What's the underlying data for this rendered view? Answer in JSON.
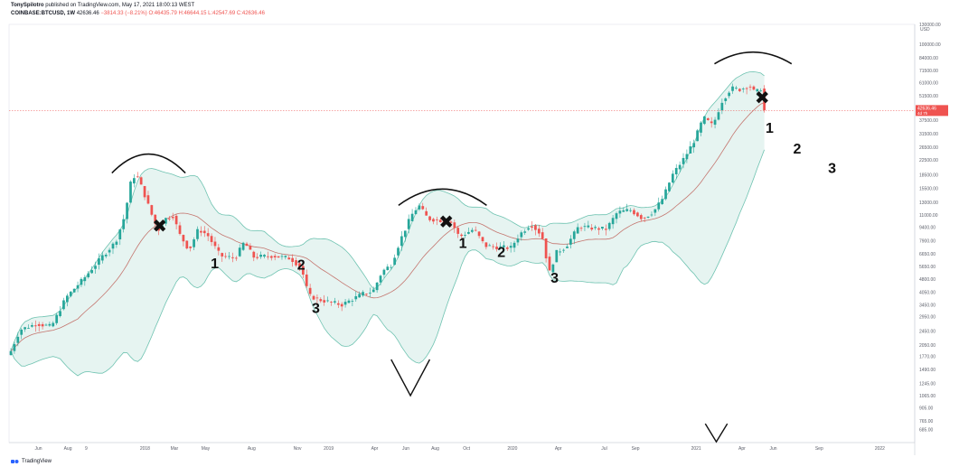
{
  "header": {
    "publisher": "TonySpilotro",
    "published_on": "published on TradingView.com, May 17, 2021 18:00:13 WEST",
    "symbol": "COINBASE:BTCUSD, 1W",
    "last": "42636.46",
    "change": "−3814.33 (−8.21%)",
    "open": "O:46435.79",
    "high": "H:46644.15",
    "low": "L:42547.69",
    "close": "C:42636.46"
  },
  "brand": {
    "name": "TradingView"
  },
  "colors": {
    "up": "#26a69a",
    "down": "#ef5350",
    "band_fill": "#e6f4f1",
    "band_line": "#6fc3b1",
    "basis": "#c4766f",
    "annotation": "#111111",
    "price_line": "#ef5350"
  },
  "chart_data": {
    "type": "candlestick",
    "title": "",
    "xlabel": "",
    "ylabel": "",
    "scale": "log",
    "ylim": [
      580,
      130000
    ],
    "currency_label": "USD",
    "y_ticks": [
      "130000.00",
      "100000.00",
      "84000.00",
      "71500.00",
      "61000.00",
      "51500.00",
      "42636.46",
      "37500.00",
      "31500.00",
      "26500.00",
      "22500.00",
      "18500.00",
      "15500.00",
      "13000.00",
      "11000.00",
      "9400.00",
      "7900.00",
      "6650.00",
      "5650.00",
      "4800.00",
      "4050.00",
      "3450.00",
      "2950.00",
      "2450.00",
      "2050.00",
      "1770.00",
      "1490.00",
      "1245.00",
      "1065.00",
      "905.00",
      "765.00",
      "685.00"
    ],
    "y_tick_values": [
      130000,
      100000,
      84000,
      71500,
      61000,
      51500,
      42636.46,
      37500,
      31500,
      26500,
      22500,
      18500,
      15500,
      13000,
      11000,
      9400,
      7900,
      6650,
      5650,
      4800,
      4050,
      3450,
      2950,
      2450,
      2050,
      1770,
      1490,
      1245,
      1065,
      905,
      765,
      685
    ],
    "last_price": 42636.46,
    "last_price_sub": "4d 7h",
    "x_ticks": [
      {
        "label": "Jun",
        "t": 2017.42
      },
      {
        "label": "Aug",
        "t": 2017.58
      },
      {
        "label": "9",
        "t": 2017.68
      },
      {
        "label": "2018",
        "t": 2018.0
      },
      {
        "label": "Mar",
        "t": 2018.16
      },
      {
        "label": "May",
        "t": 2018.33
      },
      {
        "label": "Aug",
        "t": 2018.58
      },
      {
        "label": "Nov",
        "t": 2018.83
      },
      {
        "label": "2019",
        "t": 2019.0
      },
      {
        "label": "Apr",
        "t": 2019.25
      },
      {
        "label": "Jun",
        "t": 2019.42
      },
      {
        "label": "Aug",
        "t": 2019.58
      },
      {
        "label": "Oct",
        "t": 2019.75
      },
      {
        "label": "2020",
        "t": 2020.0
      },
      {
        "label": "Apr",
        "t": 2020.25
      },
      {
        "label": "Jul",
        "t": 2020.5
      },
      {
        "label": "Sep",
        "t": 2020.67
      },
      {
        "label": "2021",
        "t": 2021.0
      },
      {
        "label": "Apr",
        "t": 2021.25
      },
      {
        "label": "Jun",
        "t": 2021.42
      },
      {
        "label": "Sep",
        "t": 2021.67
      },
      {
        "label": "2022",
        "t": 2022.0
      }
    ],
    "xlim": [
      2017.26,
      2022.19
    ],
    "price_path": [
      [
        2017.27,
        1800
      ],
      [
        2017.33,
        2500
      ],
      [
        2017.42,
        2700
      ],
      [
        2017.5,
        2600
      ],
      [
        2017.58,
        3800
      ],
      [
        2017.68,
        4900
      ],
      [
        2017.78,
        6500
      ],
      [
        2017.85,
        7800
      ],
      [
        2017.9,
        11000
      ],
      [
        2017.93,
        16500
      ],
      [
        2017.96,
        19000
      ],
      [
        2018.0,
        15000
      ],
      [
        2018.04,
        11500
      ],
      [
        2018.08,
        9000
      ],
      [
        2018.12,
        10500
      ],
      [
        2018.16,
        11000
      ],
      [
        2018.2,
        8500
      ],
      [
        2018.25,
        7000
      ],
      [
        2018.3,
        9200
      ],
      [
        2018.35,
        8500
      ],
      [
        2018.42,
        6500
      ],
      [
        2018.5,
        6300
      ],
      [
        2018.55,
        7800
      ],
      [
        2018.6,
        6400
      ],
      [
        2018.7,
        6500
      ],
      [
        2018.8,
        6300
      ],
      [
        2018.86,
        5600
      ],
      [
        2018.9,
        3900
      ],
      [
        2018.95,
        3700
      ],
      [
        2019.0,
        3600
      ],
      [
        2019.08,
        3450
      ],
      [
        2019.2,
        4000
      ],
      [
        2019.25,
        4100
      ],
      [
        2019.3,
        5300
      ],
      [
        2019.35,
        5800
      ],
      [
        2019.4,
        8000
      ],
      [
        2019.46,
        11000
      ],
      [
        2019.5,
        12500
      ],
      [
        2019.55,
        10500
      ],
      [
        2019.62,
        10300
      ],
      [
        2019.68,
        10000
      ],
      [
        2019.72,
        8300
      ],
      [
        2019.8,
        9200
      ],
      [
        2019.86,
        7400
      ],
      [
        2019.92,
        7300
      ],
      [
        2020.0,
        7200
      ],
      [
        2020.05,
        8600
      ],
      [
        2020.11,
        9800
      ],
      [
        2020.17,
        8500
      ],
      [
        2020.21,
        5200
      ],
      [
        2020.25,
        6800
      ],
      [
        2020.3,
        7300
      ],
      [
        2020.37,
        9500
      ],
      [
        2020.45,
        9300
      ],
      [
        2020.52,
        9200
      ],
      [
        2020.58,
        11400
      ],
      [
        2020.65,
        11800
      ],
      [
        2020.72,
        10500
      ],
      [
        2020.78,
        11600
      ],
      [
        2020.83,
        13800
      ],
      [
        2020.88,
        18500
      ],
      [
        2020.95,
        23500
      ],
      [
        2021.0,
        29000
      ],
      [
        2021.05,
        39000
      ],
      [
        2021.1,
        35000
      ],
      [
        2021.15,
        48000
      ],
      [
        2021.2,
        57000
      ],
      [
        2021.25,
        56000
      ],
      [
        2021.3,
        59000
      ],
      [
        2021.33,
        53500
      ],
      [
        2021.37,
        57500
      ],
      [
        2021.38,
        42636
      ]
    ],
    "annotations": {
      "marks": [
        "1",
        "2",
        "3",
        "1",
        "2",
        "3",
        "1",
        "2",
        "3"
      ],
      "cross_symbol": "✖"
    }
  }
}
